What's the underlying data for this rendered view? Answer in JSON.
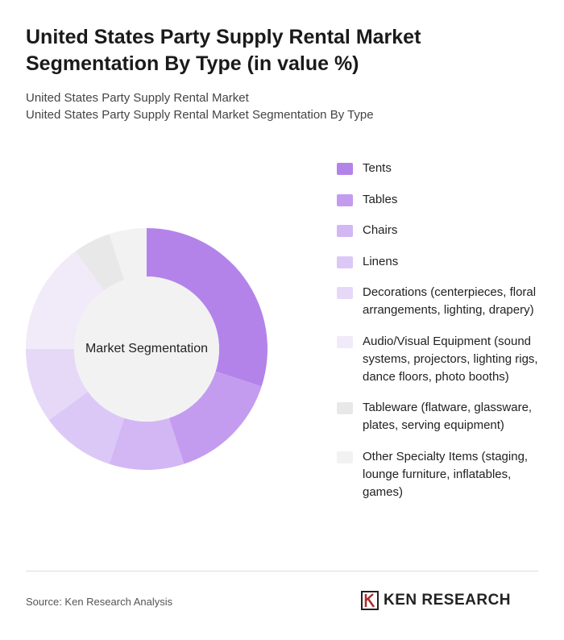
{
  "header": {
    "title": "United States Party Supply Rental Market Segmentation By Type (in value %)",
    "subtitle_1": "United States Party Supply Rental Market",
    "subtitle_2": "United States Party Supply Rental Market Segmentation By Type"
  },
  "chart_data": {
    "type": "donut",
    "center_label": "Market Segmentation",
    "categories": [
      "Tents",
      "Tables",
      "Chairs",
      "Linens",
      "Decorations (centerpieces, floral arrangements, lighting, drapery)",
      "Audio/Visual Equipment (sound systems, projectors, lighting rigs, dance floors, photo booths)",
      "Tableware (flatware, glassware, plates, serving equipment)",
      "Other Specialty Items (staging, lounge furniture, inflatables, games)"
    ],
    "values": [
      30,
      15,
      10,
      10,
      10,
      15,
      5,
      5
    ],
    "colors": [
      "#b383ea",
      "#c39cf0",
      "#d2b7f4",
      "#dcc8f6",
      "#e6d9f8",
      "#f0eaf9",
      "#e8e8e8",
      "#f2f2f2"
    ]
  },
  "footer": {
    "source": "Source: Ken Research Analysis",
    "logo": "KEN RESEARCH"
  }
}
